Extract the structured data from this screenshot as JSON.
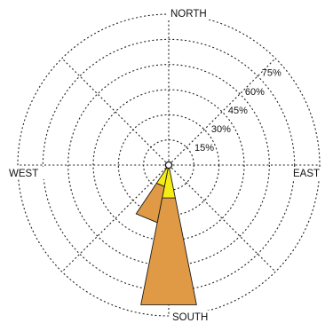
{
  "chart_data": {
    "type": "wind-rose",
    "title": "",
    "directions": {
      "north": "NORTH",
      "east": "EAST",
      "south": "SOUTH",
      "west": "WEST"
    },
    "radial_ticks": [
      15,
      30,
      45,
      60,
      75
    ],
    "radial_tick_labels": [
      "15%",
      "30%",
      "45%",
      "60%",
      "75%"
    ],
    "radial_unit": "%",
    "rlim": [
      0,
      90
    ],
    "grid": true,
    "legend": false,
    "colors": {
      "outer_band": "#e09a45",
      "inner_band": "#f5ec16",
      "grid": "#222222"
    },
    "series": [
      {
        "values": [
          {
            "direction": "S",
            "bearing": 180,
            "inner": 20,
            "outer": 85
          },
          {
            "direction": "SSW",
            "bearing": 202.5,
            "inner": 13,
            "outer": 35
          }
        ]
      }
    ]
  }
}
